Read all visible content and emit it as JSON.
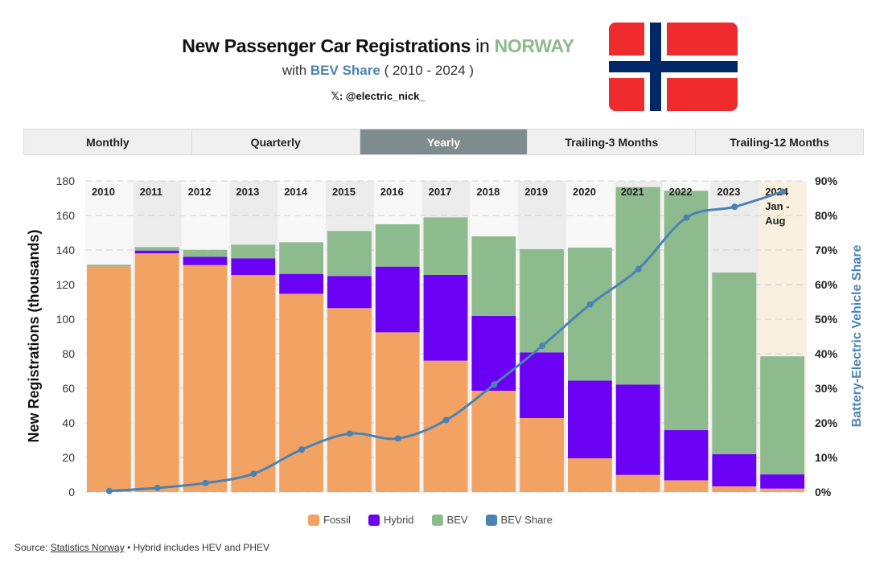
{
  "header": {
    "title_main": "New Passenger Car Registrations",
    "title_in": "in",
    "title_country": "NORWAY",
    "subtitle_with": "with",
    "subtitle_bev": "BEV Share",
    "subtitle_range": "( 2010 - 2024 )",
    "handle": "𝕏: @electric_nick_"
  },
  "tabs": [
    {
      "label": "Monthly",
      "active": false
    },
    {
      "label": "Quarterly",
      "active": false
    },
    {
      "label": "Yearly",
      "active": true
    },
    {
      "label": "Trailing-3 Months",
      "active": false
    },
    {
      "label": "Trailing-12 Months",
      "active": false
    }
  ],
  "colors": {
    "fossil": "#f2a363",
    "hybrid": "#6a00f4",
    "bev": "#8dbb8d",
    "share": "#4a82b4"
  },
  "chart_data": {
    "type": "bar",
    "stacked": true,
    "title": "New Passenger Car Registrations in NORWAY",
    "categories": [
      "2010",
      "2011",
      "2012",
      "2013",
      "2014",
      "2015",
      "2016",
      "2017",
      "2018",
      "2019",
      "2020",
      "2021",
      "2022",
      "2023",
      "2024"
    ],
    "category_notes": {
      "2024": "Jan - Aug"
    },
    "series": [
      {
        "name": "Fossil",
        "values": [
          130.5,
          138.1,
          131.3,
          125.6,
          114.7,
          106.4,
          92.4,
          76.0,
          58.6,
          42.8,
          19.5,
          9.9,
          6.8,
          3.3,
          2.0
        ]
      },
      {
        "name": "Hybrid",
        "values": [
          0.0,
          1.6,
          4.8,
          9.6,
          11.5,
          18.6,
          38.0,
          49.6,
          43.3,
          38.0,
          45.0,
          52.3,
          29.0,
          18.6,
          8.2
        ]
      },
      {
        "name": "BEV",
        "values": [
          1.0,
          2.0,
          4.0,
          7.9,
          18.3,
          26.0,
          24.5,
          33.3,
          46.0,
          59.7,
          76.9,
          114.2,
          138.5,
          105.1,
          68.3
        ]
      }
    ],
    "line_series": {
      "name": "BEV Share",
      "axis": "right",
      "values": [
        0.3,
        1.2,
        2.6,
        5.3,
        12.3,
        16.9,
        15.5,
        20.8,
        31.1,
        42.3,
        54.3,
        64.5,
        79.4,
        82.5,
        86.9
      ]
    },
    "ylabel": "New Registrations (thousands)",
    "y2label": "Battery-Electric Vehicle Share",
    "ylim": [
      0,
      180
    ],
    "y2lim": [
      0,
      90
    ],
    "yticks": [
      "0",
      "20",
      "40",
      "60",
      "80",
      "100",
      "120",
      "140",
      "160",
      "180"
    ],
    "y2ticks": [
      "0%",
      "10%",
      "20%",
      "30%",
      "40%",
      "50%",
      "60%",
      "70%",
      "80%",
      "90%"
    ],
    "legend": [
      "Fossil",
      "Hybrid",
      "BEV",
      "BEV Share"
    ],
    "legend_position": "bottom",
    "grid": true
  },
  "footer": {
    "source_prefix": "Source:",
    "source_link": "Statistics Norway",
    "note": "• Hybrid includes HEV and PHEV"
  }
}
